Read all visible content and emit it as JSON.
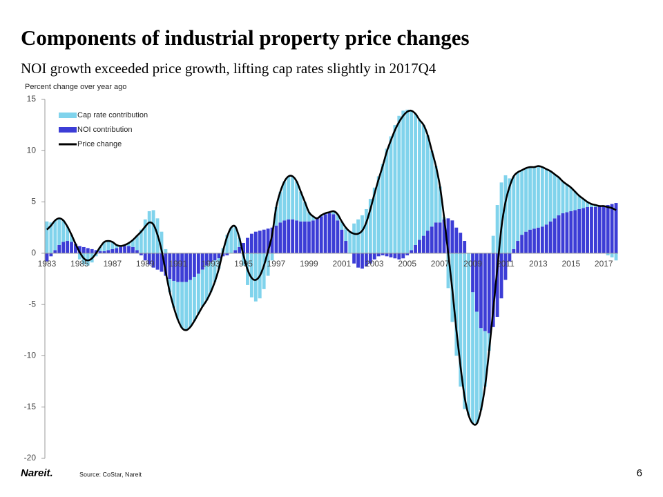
{
  "chart_data": {
    "type": "bar",
    "stacked": true,
    "title": "Components of industrial property price changes",
    "subtitle": "NOI growth exceeded price growth, lifting cap rates slightly in 2017Q4",
    "y_label": "Percent change over year ago",
    "categories": [
      "1983",
      null,
      null,
      null,
      null,
      null,
      null,
      null,
      "1985",
      null,
      null,
      null,
      null,
      null,
      null,
      null,
      "1987",
      null,
      null,
      null,
      null,
      null,
      null,
      null,
      "1989",
      null,
      null,
      null,
      null,
      null,
      null,
      null,
      "1991",
      null,
      null,
      null,
      null,
      null,
      null,
      null,
      "1993",
      null,
      null,
      null,
      null,
      null,
      null,
      null,
      "1995",
      null,
      null,
      null,
      null,
      null,
      null,
      null,
      "1997",
      null,
      null,
      null,
      null,
      null,
      null,
      null,
      "1999",
      null,
      null,
      null,
      null,
      null,
      null,
      null,
      "2001",
      null,
      null,
      null,
      null,
      null,
      null,
      null,
      "2003",
      null,
      null,
      null,
      null,
      null,
      null,
      null,
      "2005",
      null,
      null,
      null,
      null,
      null,
      null,
      null,
      "2007",
      null,
      null,
      null,
      null,
      null,
      null,
      null,
      "2009",
      null,
      null,
      null,
      null,
      null,
      null,
      null,
      "2011",
      null,
      null,
      null,
      null,
      null,
      null,
      null,
      "2013",
      null,
      null,
      null,
      null,
      null,
      null,
      null,
      "2015",
      null,
      null,
      null,
      null,
      null,
      null,
      null,
      "2017",
      null,
      null,
      null
    ],
    "series": [
      {
        "name": "Cap rate contribution",
        "color": "#80d3ec",
        "type": "bar",
        "values": [
          3.1,
          3.0,
          2.9,
          2.6,
          2.1,
          1.4,
          0.7,
          0.0,
          -0.6,
          -1.1,
          -1.2,
          -0.9,
          -0.3,
          0.4,
          0.9,
          0.9,
          0.7,
          0.3,
          0.1,
          0.1,
          0.3,
          0.7,
          1.4,
          2.3,
          3.3,
          4.1,
          4.2,
          3.4,
          2.1,
          0.4,
          -1.3,
          -2.6,
          -3.7,
          -4.5,
          -4.7,
          -4.6,
          -4.3,
          -3.9,
          -3.6,
          -3.4,
          -2.9,
          -2.1,
          -1.0,
          0.5,
          1.8,
          2.5,
          2.3,
          0.9,
          -1.2,
          -3.1,
          -4.3,
          -4.7,
          -4.4,
          -3.5,
          -2.2,
          -0.7,
          1.8,
          3.0,
          3.8,
          4.2,
          4.2,
          3.8,
          2.9,
          1.9,
          0.9,
          0.4,
          0.0,
          0.1,
          0.1,
          0.1,
          0.3,
          0.6,
          0.8,
          1.3,
          2.1,
          2.9,
          3.3,
          3.7,
          4.3,
          5.3,
          6.4,
          7.5,
          8.7,
          10.2,
          11.4,
          12.5,
          13.4,
          13.9,
          14.0,
          13.6,
          12.8,
          11.7,
          10.8,
          9.3,
          7.4,
          5.5,
          3.5,
          0.2,
          -3.4,
          -6.7,
          -10.0,
          -13.0,
          -15.2,
          -15.8,
          -12.8,
          -10.9,
          -8.0,
          -5.4,
          -1.7,
          1.7,
          4.7,
          6.9,
          7.6,
          7.3,
          7.1,
          6.7,
          6.3,
          6.2,
          6.1,
          6.0,
          6.0,
          5.8,
          5.4,
          4.9,
          4.3,
          3.7,
          3.1,
          2.7,
          2.3,
          1.8,
          1.3,
          0.9,
          0.5,
          0.3,
          0.2,
          0.0,
          0.0,
          -0.2,
          -0.4,
          -0.7
        ]
      },
      {
        "name": "NOI contribution",
        "color": "#3c3dd6",
        "type": "bar",
        "values": [
          -0.8,
          -0.3,
          0.3,
          0.8,
          1.1,
          1.2,
          1.1,
          0.9,
          0.7,
          0.6,
          0.5,
          0.4,
          0.3,
          0.2,
          0.2,
          0.3,
          0.4,
          0.5,
          0.6,
          0.7,
          0.7,
          0.6,
          0.3,
          -0.2,
          -0.7,
          -1.1,
          -1.4,
          -1.6,
          -1.8,
          -2.2,
          -2.5,
          -2.7,
          -2.8,
          -2.8,
          -2.8,
          -2.6,
          -2.3,
          -2.0,
          -1.6,
          -1.2,
          -0.9,
          -0.7,
          -0.5,
          -0.3,
          -0.2,
          0.0,
          0.3,
          0.6,
          1.0,
          1.5,
          1.9,
          2.1,
          2.2,
          2.3,
          2.4,
          2.5,
          2.7,
          3.0,
          3.2,
          3.3,
          3.3,
          3.2,
          3.1,
          3.1,
          3.1,
          3.2,
          3.4,
          3.6,
          3.8,
          3.9,
          3.8,
          3.2,
          2.3,
          1.2,
          0.0,
          -1.0,
          -1.4,
          -1.5,
          -1.3,
          -1.0,
          -0.6,
          -0.3,
          -0.2,
          -0.3,
          -0.4,
          -0.5,
          -0.6,
          -0.5,
          -0.2,
          0.3,
          0.8,
          1.3,
          1.7,
          2.2,
          2.6,
          3.0,
          3.0,
          3.3,
          3.4,
          3.2,
          2.5,
          2.0,
          1.2,
          0.0,
          -3.8,
          -5.7,
          -7.3,
          -7.6,
          -7.8,
          -7.2,
          -6.2,
          -4.4,
          -2.6,
          -0.8,
          0.4,
          1.2,
          1.8,
          2.1,
          2.3,
          2.4,
          2.5,
          2.6,
          2.8,
          3.1,
          3.4,
          3.7,
          3.9,
          4.0,
          4.1,
          4.2,
          4.3,
          4.4,
          4.5,
          4.5,
          4.5,
          4.6,
          4.6,
          4.7,
          4.8,
          4.9
        ]
      },
      {
        "name": "Price change",
        "color": "#000000",
        "type": "line",
        "values": [
          2.3,
          2.7,
          3.2,
          3.4,
          3.2,
          2.6,
          1.8,
          0.9,
          0.1,
          -0.5,
          -0.7,
          -0.5,
          0.0,
          0.6,
          1.1,
          1.2,
          1.1,
          0.8,
          0.7,
          0.8,
          1.0,
          1.3,
          1.7,
          2.1,
          2.6,
          3.0,
          2.8,
          1.8,
          0.3,
          -1.8,
          -3.8,
          -5.3,
          -6.5,
          -7.3,
          -7.5,
          -7.2,
          -6.6,
          -5.9,
          -5.2,
          -4.6,
          -3.8,
          -2.8,
          -1.5,
          0.2,
          1.6,
          2.5,
          2.6,
          1.5,
          -0.2,
          -1.6,
          -2.4,
          -2.6,
          -2.2,
          -1.2,
          0.2,
          1.8,
          4.5,
          6.0,
          7.0,
          7.5,
          7.5,
          7.0,
          6.0,
          5.0,
          4.0,
          3.6,
          3.4,
          3.7,
          3.9,
          4.0,
          4.1,
          3.8,
          3.1,
          2.5,
          2.1,
          1.9,
          1.9,
          2.2,
          3.0,
          4.3,
          5.8,
          7.2,
          8.5,
          9.9,
          11.0,
          12.0,
          12.8,
          13.4,
          13.8,
          13.9,
          13.6,
          13.0,
          12.5,
          11.5,
          10.0,
          8.5,
          6.5,
          3.5,
          0.0,
          -3.5,
          -7.5,
          -11.0,
          -14.0,
          -15.8,
          -16.6,
          -16.6,
          -15.3,
          -13.0,
          -9.5,
          -5.5,
          -1.5,
          2.5,
          5.0,
          6.5,
          7.5,
          7.9,
          8.1,
          8.3,
          8.4,
          8.4,
          8.5,
          8.4,
          8.2,
          8.0,
          7.7,
          7.4,
          7.0,
          6.7,
          6.4,
          6.0,
          5.6,
          5.3,
          5.0,
          4.8,
          4.7,
          4.6,
          4.6,
          4.5,
          4.4,
          4.2
        ]
      }
    ],
    "ylim": [
      -20,
      15
    ],
    "yticks": [
      -20,
      -15,
      -10,
      -5,
      0,
      5,
      10,
      15
    ],
    "grid": false,
    "legend": "top-left"
  },
  "footer": {
    "logo": "Nareit.",
    "source": "Source: CoStar, Nareit",
    "page": "6"
  }
}
